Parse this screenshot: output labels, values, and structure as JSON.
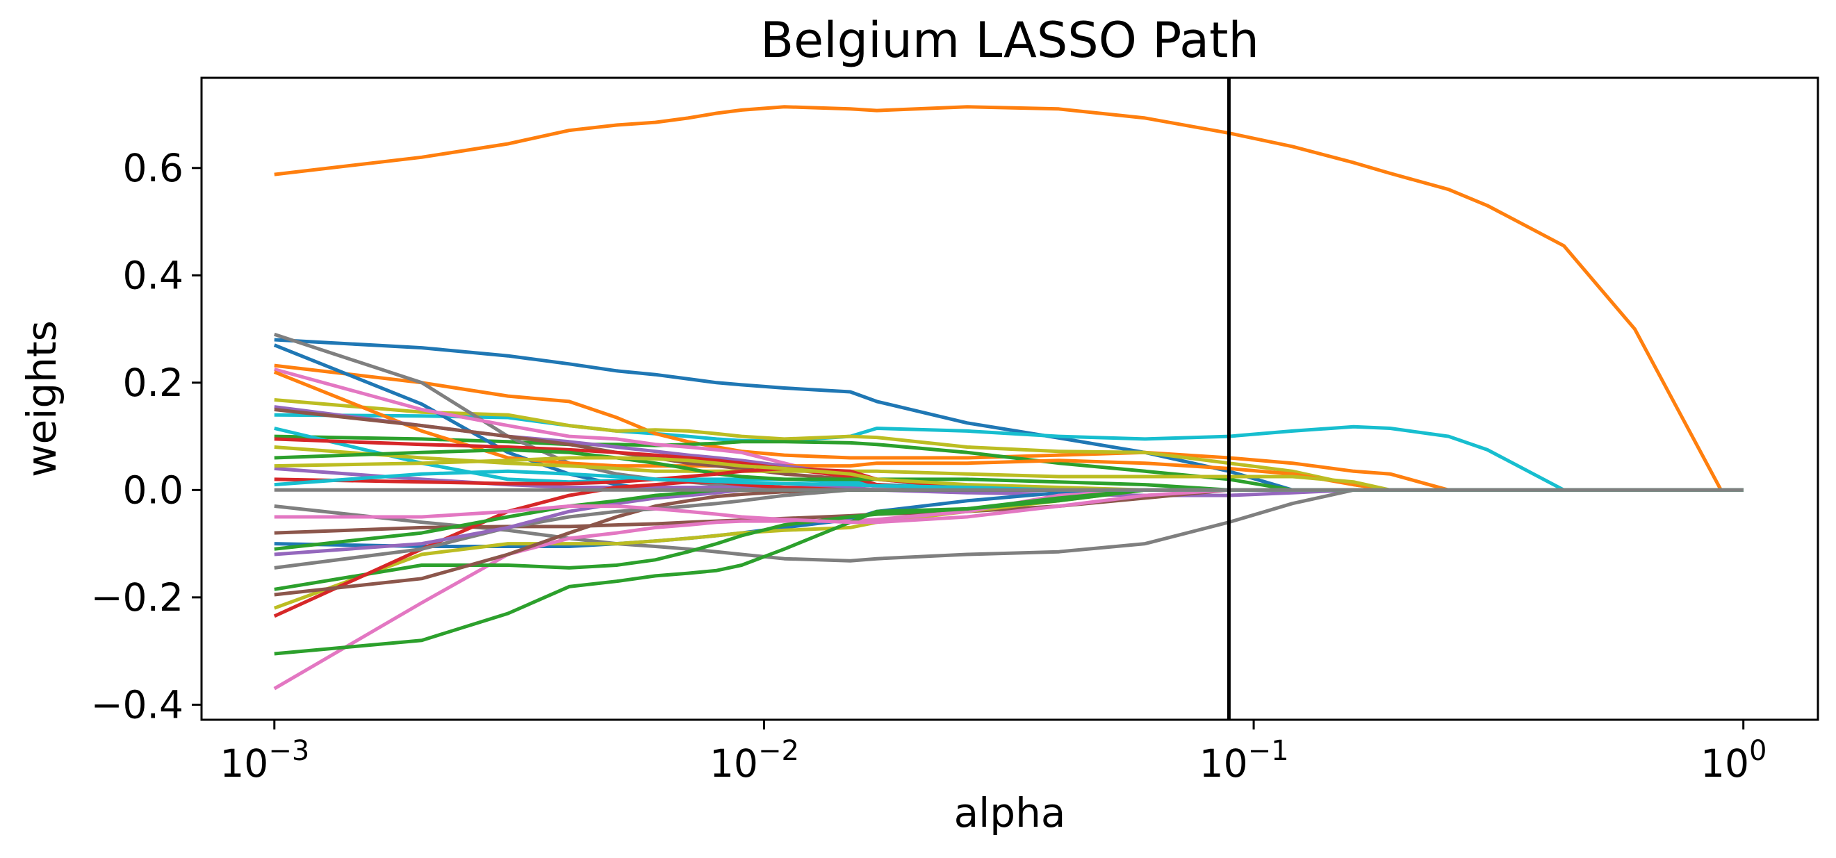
{
  "chart_data": {
    "type": "line",
    "title": "Belgium LASSO Path",
    "xlabel": "alpha",
    "ylabel": "weights",
    "xscale": "log",
    "xlim": [
      0.00071,
      1.42
    ],
    "ylim": [
      -0.428,
      0.768
    ],
    "grid": false,
    "legend": "none",
    "x_ticks": [
      {
        "value": 0.001,
        "base": "10",
        "exp": "−3"
      },
      {
        "value": 0.01,
        "base": "10",
        "exp": "−2"
      },
      {
        "value": 0.1,
        "base": "10",
        "exp": "−1"
      },
      {
        "value": 1,
        "base": "10",
        "exp": "0"
      }
    ],
    "y_ticks": [
      {
        "value": 0.6,
        "label": "0.6"
      },
      {
        "value": 0.4,
        "label": "0.4"
      },
      {
        "value": 0.2,
        "label": "0.2"
      },
      {
        "value": 0.0,
        "label": "0.0"
      },
      {
        "value": -0.2,
        "label": "−0.2"
      },
      {
        "value": -0.4,
        "label": "−0.4"
      }
    ],
    "vline": {
      "x": 0.089,
      "color": "#000000"
    },
    "x": [
      0.001,
      0.002,
      0.003,
      0.004,
      0.005,
      0.006,
      0.007,
      0.008,
      0.009,
      0.011,
      0.015,
      0.017,
      0.026,
      0.04,
      0.06,
      0.089,
      0.12,
      0.16,
      0.19,
      0.25,
      0.3,
      0.43,
      0.6,
      0.9,
      1.0
    ],
    "series": [
      {
        "color": "#ff7f0e",
        "values": [
          0.588,
          0.62,
          0.645,
          0.67,
          0.68,
          0.685,
          0.693,
          0.702,
          0.708,
          0.714,
          0.71,
          0.707,
          0.714,
          0.71,
          0.693,
          0.665,
          0.64,
          0.61,
          0.59,
          0.56,
          0.53,
          0.455,
          0.3,
          0.0,
          0.0
        ]
      },
      {
        "color": "#1f77b4",
        "values": [
          0.28,
          0.265,
          0.25,
          0.235,
          0.222,
          0.215,
          0.207,
          0.2,
          0.196,
          0.19,
          0.183,
          0.165,
          0.125,
          0.097,
          0.07,
          0.035,
          0.0,
          0.0,
          0.0,
          0.0,
          0.0,
          0.0,
          0.0,
          0.0,
          0.0
        ]
      },
      {
        "color": "#17becf",
        "values": [
          0.14,
          0.138,
          0.135,
          0.12,
          0.11,
          0.105,
          0.1,
          0.095,
          0.092,
          0.092,
          0.1,
          0.115,
          0.11,
          0.1,
          0.095,
          0.1,
          0.11,
          0.118,
          0.115,
          0.1,
          0.075,
          0.0,
          0.0,
          0.0,
          0.0
        ]
      },
      {
        "color": "#ff7f0e",
        "values": [
          0.232,
          0.2,
          0.175,
          0.165,
          0.135,
          0.105,
          0.09,
          0.08,
          0.072,
          0.065,
          0.06,
          0.06,
          0.06,
          0.065,
          0.07,
          0.06,
          0.05,
          0.035,
          0.03,
          0.0,
          0.0,
          0.0,
          0.0,
          0.0,
          0.0
        ]
      },
      {
        "color": "#bcbd22",
        "values": [
          0.168,
          0.145,
          0.14,
          0.12,
          0.11,
          0.112,
          0.11,
          0.105,
          0.1,
          0.095,
          0.1,
          0.098,
          0.08,
          0.072,
          0.07,
          0.05,
          0.035,
          0.01,
          0.0,
          0.0,
          0.0,
          0.0,
          0.0,
          0.0,
          0.0
        ]
      },
      {
        "color": "#2ca02c",
        "values": [
          0.1,
          0.095,
          0.09,
          0.085,
          0.085,
          0.083,
          0.085,
          0.087,
          0.09,
          0.09,
          0.088,
          0.085,
          0.07,
          0.05,
          0.035,
          0.02,
          0.0,
          0.0,
          0.0,
          0.0,
          0.0,
          0.0,
          0.0,
          0.0,
          0.0
        ]
      },
      {
        "color": "#7f7f7f",
        "values": [
          0.29,
          0.2,
          0.1,
          0.05,
          0.03,
          0.02,
          0.015,
          0.01,
          0.005,
          0.0,
          0.0,
          0.0,
          0.0,
          0.0,
          0.0,
          0.0,
          0.0,
          0.0,
          0.0,
          0.0,
          0.0,
          0.0,
          0.0,
          0.0,
          0.0
        ]
      },
      {
        "color": "#1f77b4",
        "values": [
          0.27,
          0.16,
          0.07,
          0.03,
          0.01,
          0.0,
          0.0,
          0.0,
          0.0,
          0.0,
          0.0,
          0.0,
          0.0,
          0.0,
          0.0,
          0.0,
          0.0,
          0.0,
          0.0,
          0.0,
          0.0,
          0.0,
          0.0,
          0.0,
          0.0
        ]
      },
      {
        "color": "#e377c2",
        "values": [
          0.225,
          0.15,
          0.12,
          0.1,
          0.095,
          0.085,
          0.08,
          0.075,
          0.07,
          0.05,
          0.02,
          0.005,
          0.0,
          0.0,
          0.0,
          0.0,
          0.0,
          0.0,
          0.0,
          0.0,
          0.0,
          0.0,
          0.0,
          0.0,
          0.0
        ]
      },
      {
        "color": "#ff7f0e",
        "values": [
          0.22,
          0.11,
          0.06,
          0.05,
          0.045,
          0.045,
          0.045,
          0.045,
          0.045,
          0.045,
          0.045,
          0.05,
          0.05,
          0.055,
          0.05,
          0.04,
          0.03,
          0.01,
          0.0,
          0.0,
          0.0,
          0.0,
          0.0,
          0.0,
          0.0
        ]
      },
      {
        "color": "#9467bd",
        "values": [
          0.155,
          0.12,
          0.1,
          0.09,
          0.08,
          0.072,
          0.065,
          0.06,
          0.055,
          0.045,
          0.03,
          0.02,
          0.005,
          0.0,
          0.0,
          0.0,
          0.0,
          0.0,
          0.0,
          0.0,
          0.0,
          0.0,
          0.0,
          0.0,
          0.0
        ]
      },
      {
        "color": "#8c564b",
        "values": [
          0.15,
          0.12,
          0.1,
          0.085,
          0.07,
          0.06,
          0.05,
          0.045,
          0.04,
          0.03,
          0.02,
          0.01,
          0.0,
          0.0,
          0.0,
          0.0,
          0.0,
          0.0,
          0.0,
          0.0,
          0.0,
          0.0,
          0.0,
          0.0,
          0.0
        ]
      },
      {
        "color": "#17becf",
        "values": [
          0.115,
          0.05,
          0.02,
          0.015,
          0.018,
          0.02,
          0.02,
          0.02,
          0.02,
          0.02,
          0.015,
          0.01,
          0.005,
          0.0,
          0.0,
          0.0,
          0.0,
          0.0,
          0.0,
          0.0,
          0.0,
          0.0,
          0.0,
          0.0,
          0.0
        ]
      },
      {
        "color": "#d62728",
        "values": [
          0.095,
          0.085,
          0.08,
          0.075,
          0.07,
          0.065,
          0.06,
          0.055,
          0.05,
          0.04,
          0.025,
          0.01,
          0.0,
          0.0,
          0.0,
          0.0,
          0.0,
          0.0,
          0.0,
          0.0,
          0.0,
          0.0,
          0.0,
          0.0,
          0.0
        ]
      },
      {
        "color": "#bcbd22",
        "values": [
          0.08,
          0.06,
          0.05,
          0.045,
          0.04,
          0.035,
          0.035,
          0.035,
          0.035,
          0.035,
          0.035,
          0.035,
          0.03,
          0.025,
          0.025,
          0.025,
          0.025,
          0.015,
          0.0,
          0.0,
          0.0,
          0.0,
          0.0,
          0.0,
          0.0
        ]
      },
      {
        "color": "#2ca02c",
        "values": [
          0.06,
          0.07,
          0.075,
          0.07,
          0.06,
          0.05,
          0.04,
          0.03,
          0.025,
          0.02,
          0.02,
          0.02,
          0.02,
          0.015,
          0.01,
          0.0,
          0.0,
          0.0,
          0.0,
          0.0,
          0.0,
          0.0,
          0.0,
          0.0,
          0.0
        ]
      },
      {
        "color": "#9467bd",
        "values": [
          0.04,
          0.02,
          0.01,
          0.005,
          0.005,
          0.005,
          0.005,
          0.005,
          0.005,
          0.005,
          0.005,
          0.0,
          -0.005,
          -0.008,
          -0.01,
          -0.01,
          -0.005,
          0.0,
          0.0,
          0.0,
          0.0,
          0.0,
          0.0,
          0.0,
          0.0
        ]
      },
      {
        "color": "#d62728",
        "values": [
          0.02,
          0.015,
          0.012,
          0.012,
          0.015,
          0.02,
          0.025,
          0.03,
          0.035,
          0.04,
          0.035,
          0.02,
          0.005,
          0.0,
          0.0,
          0.0,
          0.0,
          0.0,
          0.0,
          0.0,
          0.0,
          0.0,
          0.0,
          0.0,
          0.0
        ]
      },
      {
        "color": "#7f7f7f",
        "values": [
          -0.03,
          -0.06,
          -0.075,
          -0.09,
          -0.1,
          -0.105,
          -0.11,
          -0.115,
          -0.12,
          -0.128,
          -0.132,
          -0.128,
          -0.12,
          -0.115,
          -0.1,
          -0.06,
          -0.025,
          0.0,
          0.0,
          0.0,
          0.0,
          0.0,
          0.0,
          0.0,
          0.0
        ]
      },
      {
        "color": "#1f77b4",
        "values": [
          -0.1,
          -0.105,
          -0.105,
          -0.105,
          -0.1,
          -0.095,
          -0.09,
          -0.085,
          -0.08,
          -0.07,
          -0.055,
          -0.04,
          -0.02,
          -0.005,
          0.0,
          0.0,
          0.0,
          0.0,
          0.0,
          0.0,
          0.0,
          0.0,
          0.0,
          0.0,
          0.0
        ]
      },
      {
        "color": "#8c564b",
        "values": [
          -0.08,
          -0.07,
          -0.068,
          -0.068,
          -0.065,
          -0.063,
          -0.06,
          -0.058,
          -0.056,
          -0.053,
          -0.048,
          -0.045,
          -0.04,
          -0.03,
          -0.015,
          0.0,
          0.0,
          0.0,
          0.0,
          0.0,
          0.0,
          0.0,
          0.0,
          0.0,
          0.0
        ]
      },
      {
        "color": "#bcbd22",
        "values": [
          -0.22,
          -0.12,
          -0.1,
          -0.1,
          -0.1,
          -0.095,
          -0.09,
          -0.085,
          -0.08,
          -0.075,
          -0.07,
          -0.06,
          -0.04,
          -0.02,
          0.0,
          0.0,
          0.0,
          0.0,
          0.0,
          0.0,
          0.0,
          0.0,
          0.0,
          0.0,
          0.0
        ]
      },
      {
        "color": "#e377c2",
        "values": [
          -0.37,
          -0.21,
          -0.12,
          -0.09,
          -0.08,
          -0.07,
          -0.065,
          -0.06,
          -0.058,
          -0.058,
          -0.058,
          -0.055,
          -0.04,
          -0.01,
          0.0,
          0.0,
          0.0,
          0.0,
          0.0,
          0.0,
          0.0,
          0.0,
          0.0,
          0.0,
          0.0
        ]
      },
      {
        "color": "#2ca02c",
        "values": [
          -0.305,
          -0.28,
          -0.23,
          -0.18,
          -0.17,
          -0.16,
          -0.155,
          -0.15,
          -0.14,
          -0.11,
          -0.06,
          -0.04,
          -0.035,
          -0.02,
          0.0,
          0.0,
          0.0,
          0.0,
          0.0,
          0.0,
          0.0,
          0.0,
          0.0,
          0.0,
          0.0
        ]
      },
      {
        "color": "#2ca02c",
        "values": [
          -0.185,
          -0.14,
          -0.14,
          -0.145,
          -0.14,
          -0.13,
          -0.115,
          -0.1,
          -0.085,
          -0.065,
          -0.05,
          -0.045,
          -0.035,
          -0.015,
          0.0,
          0.0,
          0.0,
          0.0,
          0.0,
          0.0,
          0.0,
          0.0,
          0.0,
          0.0,
          0.0
        ]
      },
      {
        "color": "#d62728",
        "values": [
          -0.235,
          -0.11,
          -0.04,
          -0.01,
          0.005,
          0.01,
          0.015,
          0.015,
          0.01,
          0.005,
          0.0,
          0.0,
          0.0,
          0.0,
          0.0,
          0.0,
          0.0,
          0.0,
          0.0,
          0.0,
          0.0,
          0.0,
          0.0,
          0.0,
          0.0
        ]
      },
      {
        "color": "#8c564b",
        "values": [
          -0.195,
          -0.165,
          -0.12,
          -0.08,
          -0.05,
          -0.03,
          -0.02,
          -0.012,
          -0.008,
          -0.003,
          0.0,
          0.0,
          0.0,
          0.0,
          0.0,
          0.0,
          0.0,
          0.0,
          0.0,
          0.0,
          0.0,
          0.0,
          0.0,
          0.0,
          0.0
        ]
      },
      {
        "color": "#7f7f7f",
        "values": [
          -0.145,
          -0.11,
          -0.07,
          -0.05,
          -0.04,
          -0.035,
          -0.03,
          -0.025,
          -0.02,
          -0.01,
          0.0,
          0.0,
          0.0,
          0.0,
          0.0,
          0.0,
          0.0,
          0.0,
          0.0,
          0.0,
          0.0,
          0.0,
          0.0,
          0.0,
          0.0
        ]
      },
      {
        "color": "#9467bd",
        "values": [
          -0.12,
          -0.1,
          -0.07,
          -0.04,
          -0.025,
          -0.015,
          -0.01,
          -0.005,
          0.0,
          0.0,
          0.0,
          0.0,
          0.0,
          0.0,
          0.0,
          0.0,
          0.0,
          0.0,
          0.0,
          0.0,
          0.0,
          0.0,
          0.0,
          0.0,
          0.0
        ]
      },
      {
        "color": "#2ca02c",
        "values": [
          -0.11,
          -0.08,
          -0.05,
          -0.03,
          -0.02,
          -0.01,
          -0.005,
          0.0,
          0.0,
          0.0,
          0.0,
          0.0,
          0.0,
          0.0,
          0.0,
          0.0,
          0.0,
          0.0,
          0.0,
          0.0,
          0.0,
          0.0,
          0.0,
          0.0,
          0.0
        ]
      },
      {
        "color": "#e377c2",
        "values": [
          -0.05,
          -0.05,
          -0.04,
          -0.03,
          -0.03,
          -0.035,
          -0.04,
          -0.045,
          -0.05,
          -0.055,
          -0.06,
          -0.06,
          -0.05,
          -0.03,
          -0.01,
          0.0,
          0.0,
          0.0,
          0.0,
          0.0,
          0.0,
          0.0,
          0.0,
          0.0,
          0.0
        ]
      },
      {
        "color": "#bcbd22",
        "values": [
          0.045,
          0.05,
          0.055,
          0.06,
          0.06,
          0.058,
          0.055,
          0.05,
          0.045,
          0.04,
          0.03,
          0.02,
          0.01,
          0.005,
          0.0,
          0.0,
          0.0,
          0.0,
          0.0,
          0.0,
          0.0,
          0.0,
          0.0,
          0.0,
          0.0
        ]
      },
      {
        "color": "#17becf",
        "values": [
          0.01,
          0.03,
          0.035,
          0.03,
          0.025,
          0.02,
          0.018,
          0.016,
          0.014,
          0.012,
          0.01,
          0.008,
          0.005,
          0.0,
          0.0,
          0.0,
          0.0,
          0.0,
          0.0,
          0.0,
          0.0,
          0.0,
          0.0,
          0.0,
          0.0
        ]
      },
      {
        "color": "#7f7f7f",
        "values": [
          0.0,
          0.0,
          0.0,
          0.0,
          0.0,
          0.0,
          0.0,
          0.0,
          0.0,
          0.0,
          0.0,
          0.0,
          0.0,
          0.0,
          0.0,
          0.0,
          0.0,
          0.0,
          0.0,
          0.0,
          0.0,
          0.0,
          0.0,
          0.0,
          0.0
        ]
      }
    ]
  }
}
